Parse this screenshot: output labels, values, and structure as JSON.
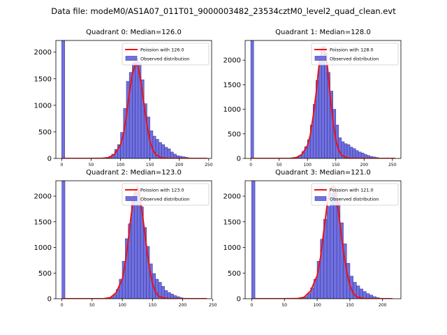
{
  "figure_title": "Data file: modeM0/AS1A07_011T01_9000003482_23534cztM0_level2_quad_clean.evt",
  "chart_data": [
    {
      "type": "bar",
      "title": "Quadrant 0: Median=126.0",
      "median": 126.0,
      "legend": [
        "Poission with 126.0",
        "Observed distribution"
      ],
      "legend_position": "top-right",
      "xlim": [
        -10,
        255
      ],
      "ylim": [
        0,
        2220
      ],
      "xticks": [
        0,
        50,
        100,
        150,
        200,
        250
      ],
      "yticks": [
        0,
        500,
        1000,
        1500,
        2000
      ],
      "bin_width": 5,
      "bins": [
        0,
        70,
        75,
        80,
        85,
        90,
        95,
        100,
        105,
        110,
        115,
        120,
        125,
        130,
        135,
        140,
        145,
        150,
        155,
        160,
        165,
        170,
        175,
        180,
        185,
        190,
        195,
        200,
        205,
        210,
        215
      ],
      "counts": [
        2220,
        10,
        20,
        40,
        80,
        170,
        260,
        490,
        940,
        1450,
        1620,
        1800,
        1880,
        1800,
        1480,
        1030,
        780,
        520,
        420,
        360,
        300,
        260,
        210,
        180,
        120,
        80,
        50,
        40,
        30,
        20,
        10
      ],
      "poisson_x": [
        0,
        50,
        70,
        80,
        90,
        100,
        105,
        110,
        115,
        120,
        125,
        130,
        135,
        140,
        145,
        150,
        155,
        160,
        170,
        180,
        200,
        248
      ],
      "poisson_y": [
        0,
        0,
        2,
        15,
        80,
        260,
        460,
        800,
        1230,
        1580,
        1780,
        1730,
        1420,
        1020,
        640,
        330,
        160,
        70,
        10,
        2,
        0,
        0
      ]
    },
    {
      "type": "bar",
      "title": "Quadrant 1: Median=128.0",
      "median": 128.0,
      "legend": [
        "Poission with 128.0",
        "Observed distribution"
      ],
      "legend_position": "top-right",
      "xlim": [
        -10,
        265
      ],
      "ylim": [
        0,
        2400
      ],
      "xticks": [
        0,
        50,
        100,
        150,
        200,
        250
      ],
      "yticks": [
        0,
        500,
        1000,
        1500,
        2000
      ],
      "bin_width": 5,
      "bins": [
        0,
        70,
        75,
        80,
        85,
        90,
        95,
        100,
        105,
        110,
        115,
        120,
        125,
        130,
        135,
        140,
        145,
        150,
        155,
        160,
        165,
        170,
        175,
        180,
        185,
        190,
        195,
        200,
        205,
        210,
        215,
        220
      ],
      "counts": [
        2400,
        10,
        20,
        30,
        60,
        140,
        240,
        380,
        680,
        1100,
        1590,
        2000,
        2270,
        2140,
        1750,
        1370,
        1000,
        680,
        420,
        340,
        300,
        280,
        230,
        200,
        160,
        130,
        110,
        80,
        60,
        40,
        30,
        20
      ],
      "poisson_x": [
        0,
        50,
        70,
        80,
        90,
        100,
        105,
        110,
        115,
        120,
        125,
        130,
        135,
        140,
        145,
        150,
        155,
        160,
        170,
        180,
        200,
        255
      ],
      "poisson_y": [
        0,
        0,
        2,
        15,
        80,
        260,
        480,
        850,
        1300,
        1850,
        2200,
        2270,
        1900,
        1300,
        760,
        380,
        170,
        70,
        10,
        2,
        0,
        0
      ]
    },
    {
      "type": "bar",
      "title": "Quadrant 2: Median=123.0",
      "median": 123.0,
      "legend": [
        "Poission with 123.0",
        "Observed distribution"
      ],
      "legend_position": "top-right",
      "xlim": [
        -10,
        248
      ],
      "ylim": [
        0,
        2300
      ],
      "xticks": [
        0,
        50,
        100,
        150,
        200,
        250
      ],
      "yticks": [
        0,
        500,
        1000,
        1500,
        2000
      ],
      "bin_width": 5,
      "bins": [
        0,
        70,
        75,
        80,
        85,
        90,
        95,
        100,
        105,
        110,
        115,
        120,
        125,
        130,
        135,
        140,
        145,
        150,
        155,
        160,
        165,
        170,
        175,
        180,
        185,
        190,
        195,
        200,
        205
      ],
      "counts": [
        2300,
        10,
        20,
        30,
        80,
        180,
        380,
        730,
        1170,
        1460,
        1900,
        2070,
        2150,
        1790,
        1390,
        1020,
        680,
        490,
        380,
        320,
        240,
        160,
        120,
        90,
        60,
        40,
        20,
        10,
        10
      ],
      "poisson_x": [
        0,
        50,
        70,
        80,
        90,
        100,
        105,
        110,
        115,
        120,
        125,
        130,
        135,
        140,
        145,
        150,
        155,
        160,
        170,
        180,
        200,
        240
      ],
      "poisson_y": [
        0,
        0,
        2,
        20,
        120,
        380,
        700,
        1150,
        1650,
        2050,
        2180,
        1950,
        1500,
        1020,
        600,
        300,
        130,
        50,
        8,
        1,
        0,
        0
      ]
    },
    {
      "type": "bar",
      "title": "Quadrant 3: Median=121.0",
      "median": 121.0,
      "legend": [
        "Poission with 121.0",
        "Observed distribution"
      ],
      "legend_position": "top-right",
      "xlim": [
        -10,
        228
      ],
      "ylim": [
        0,
        2300
      ],
      "xticks": [
        0,
        50,
        100,
        150,
        200
      ],
      "yticks": [
        0,
        500,
        1000,
        1500,
        2000
      ],
      "bin_width": 5,
      "bins": [
        0,
        70,
        75,
        80,
        85,
        90,
        95,
        100,
        105,
        110,
        115,
        120,
        125,
        130,
        135,
        140,
        145,
        150,
        155,
        160,
        165,
        170,
        175,
        180,
        185,
        190,
        195
      ],
      "counts": [
        2300,
        10,
        20,
        40,
        100,
        210,
        380,
        730,
        1160,
        1550,
        1800,
        2060,
        2140,
        1890,
        1480,
        1070,
        690,
        440,
        320,
        250,
        190,
        140,
        100,
        70,
        40,
        20,
        10
      ],
      "poisson_x": [
        0,
        50,
        70,
        80,
        90,
        100,
        105,
        110,
        115,
        120,
        125,
        130,
        135,
        140,
        145,
        150,
        155,
        160,
        170,
        180,
        215
      ],
      "poisson_y": [
        0,
        0,
        3,
        30,
        150,
        450,
        800,
        1300,
        1800,
        2150,
        2200,
        1950,
        1450,
        950,
        540,
        260,
        110,
        40,
        5,
        1,
        0
      ]
    }
  ],
  "colors": {
    "bar_fill": "#7070e0",
    "bar_edge": "#3a3aa0",
    "poisson_line": "#ee1111",
    "axis": "#000000"
  }
}
